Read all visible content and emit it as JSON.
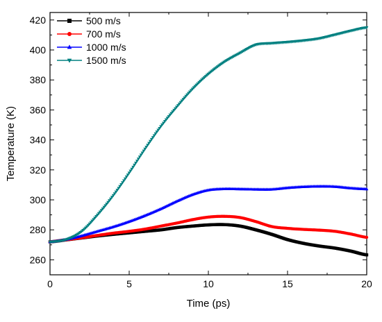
{
  "chart_data": {
    "type": "line",
    "title": "",
    "xlabel": "Time (ps)",
    "ylabel": "Temperature (K)",
    "xlim": [
      0,
      20
    ],
    "ylim": [
      250,
      425
    ],
    "x_ticks": [
      0,
      5,
      10,
      15,
      20
    ],
    "y_ticks": [
      260,
      280,
      300,
      320,
      340,
      360,
      380,
      400,
      420
    ],
    "grid": false,
    "legend_position": "top-left",
    "series": [
      {
        "name": "500 m/s",
        "color": "#000000",
        "marker": "square",
        "x": [
          0,
          1,
          2,
          3,
          4,
          5,
          6,
          7,
          8,
          9,
          10,
          11,
          12,
          13,
          14,
          15,
          16,
          17,
          18,
          19,
          20
        ],
        "y": [
          272,
          273.3,
          274.6,
          275.9,
          277,
          278,
          279,
          280,
          281.5,
          282.5,
          283.3,
          283.5,
          282.5,
          280,
          277,
          273.5,
          271,
          269.2,
          267.8,
          265.8,
          263.3
        ]
      },
      {
        "name": "700 m/s",
        "color": "#ff0000",
        "marker": "circle",
        "x": [
          0,
          1,
          2,
          3,
          4,
          5,
          6,
          7,
          8,
          9,
          10,
          11,
          12,
          13,
          14,
          15,
          16,
          17,
          18,
          19,
          20
        ],
        "y": [
          272,
          273.3,
          274.7,
          276.3,
          277.8,
          279,
          280.5,
          282.5,
          284.5,
          286.8,
          288.5,
          289,
          288.2,
          285.5,
          282.2,
          281,
          280.3,
          279.8,
          279,
          277.2,
          275
        ]
      },
      {
        "name": "1000 m/s",
        "color": "#0000ff",
        "marker": "triangle-up",
        "x": [
          0,
          1,
          2,
          3,
          4,
          5,
          6,
          7,
          8,
          9,
          10,
          11,
          12,
          13,
          14,
          15,
          16,
          17,
          18,
          19,
          20
        ],
        "y": [
          272,
          273.5,
          276,
          279,
          282,
          285.5,
          289.5,
          294,
          299,
          303.5,
          306.5,
          307.3,
          307.2,
          307,
          307,
          308,
          308.7,
          309,
          308.8,
          307.8,
          307.2
        ]
      },
      {
        "name": "1500 m/s",
        "color": "#008080",
        "marker": "triangle-down",
        "x": [
          0,
          1,
          2,
          3,
          4,
          5,
          6,
          7,
          8,
          9,
          10,
          11,
          12,
          13,
          14,
          15,
          16,
          17,
          18,
          19,
          20
        ],
        "y": [
          272,
          273.5,
          279,
          290,
          303,
          318,
          334,
          349,
          362,
          374,
          384,
          392,
          398,
          403.5,
          404.5,
          405.3,
          406.3,
          407.7,
          410.2,
          412.8,
          415
        ]
      }
    ]
  }
}
